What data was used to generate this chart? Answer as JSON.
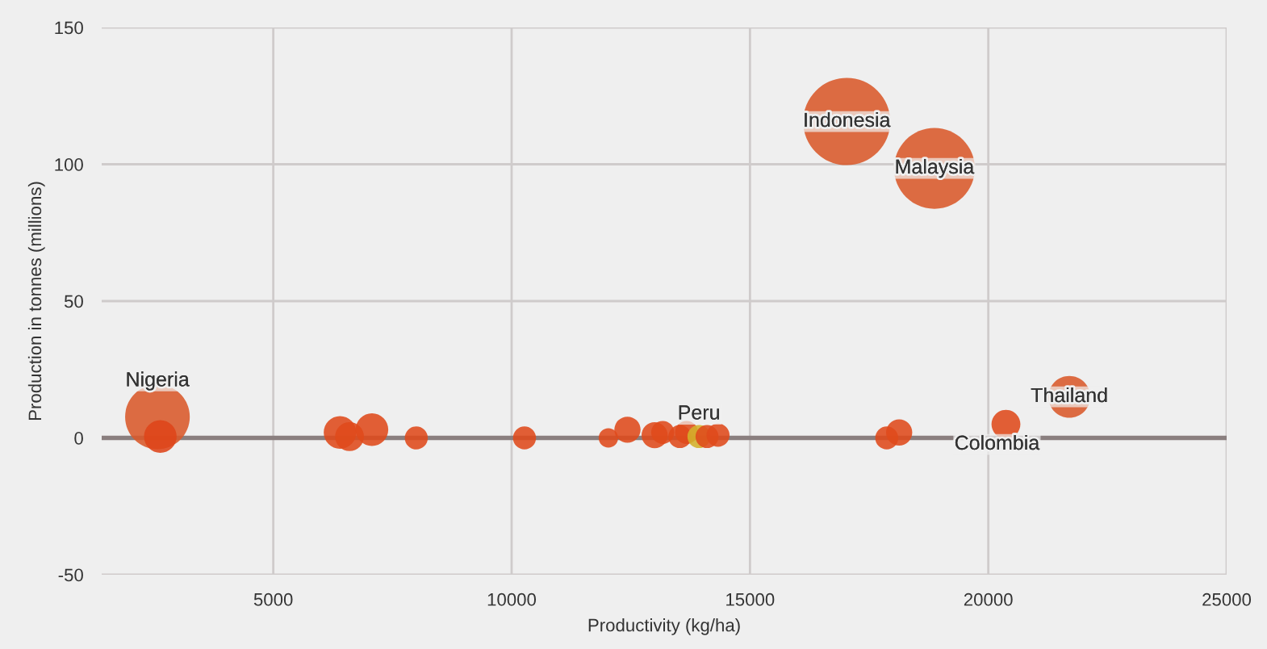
{
  "chart_data": {
    "type": "bubble",
    "xlabel": "Productivity (kg/ha)",
    "ylabel": "Production in tonnes (millions)",
    "xlim": [
      1400,
      25000
    ],
    "xticks": [
      5000,
      10000,
      15000,
      20000,
      25000
    ],
    "ylim": [
      -50,
      150
    ],
    "yticks": [
      -50,
      0,
      50,
      100,
      150
    ],
    "grid": true,
    "series": [
      {
        "x": [
          2570,
          2630,
          6400,
          6600,
          7070,
          8000,
          10270,
          12030,
          12430,
          13000,
          13170,
          13530,
          13670,
          13930,
          14100,
          14330,
          17870,
          18130,
          20370,
          21700,
          17030,
          18870
        ],
        "values": [
          7.7,
          0.5,
          2,
          0.5,
          3,
          0,
          0,
          0,
          3,
          1,
          2,
          0.5,
          2,
          0.5,
          0.5,
          1,
          0,
          2,
          5,
          15,
          115.6,
          98.5
        ],
        "sizes": [
          0.55,
          0.14,
          0.14,
          0.11,
          0.14,
          0.07,
          0.07,
          0.05,
          0.09,
          0.09,
          0.07,
          0.07,
          0.07,
          0.07,
          0.07,
          0.07,
          0.07,
          0.09,
          0.11,
          0.23,
          1,
          0.86
        ],
        "colors": [
          "#d9592a",
          "#de4419",
          "#df4a1b",
          "#df4a1b",
          "#df4a1b",
          "#df4a1b",
          "#df4a1b",
          "#df4a1b",
          "#df4a1b",
          "#df4a1b",
          "#df4a1b",
          "#df4a1b",
          "#df4a1b",
          "#d4b12a",
          "#df4a1b",
          "#df4a1b",
          "#df4a1b",
          "#df4a1b",
          "#df4a1b",
          "#d9592a",
          "#d9592a",
          "#d9592a"
        ]
      }
    ],
    "ref_lines": [
      {
        "axis": "y",
        "value": 0,
        "color": "#8a7f7f"
      }
    ],
    "annotations": [
      {
        "text": "Nigeria",
        "x": 2570,
        "y": 7.7
      },
      {
        "text": "Peru",
        "x": 13930,
        "y": 0.5
      },
      {
        "text": "Indonesia",
        "x": 17030,
        "y": 115.6
      },
      {
        "text": "Malaysia",
        "x": 18870,
        "y": 98.5
      },
      {
        "text": "Colombia",
        "x": 20370,
        "y": 5
      },
      {
        "text": "Thailand",
        "x": 21700,
        "y": 15
      }
    ]
  }
}
